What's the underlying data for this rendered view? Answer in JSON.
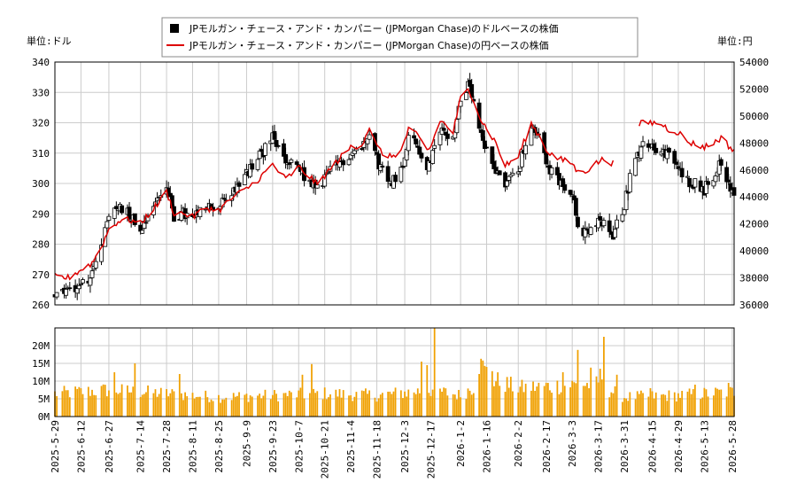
{
  "chart_data": {
    "type": "candlestick",
    "legend": {
      "placement": "top-center",
      "entries": [
        {
          "label": "JPモルガン・チェース・アンド・カンパニー (JPMorgan Chase)のドルベースの株価",
          "color": "#000000",
          "marker": "square"
        },
        {
          "label": "JPモルガン・チェース・アンド・カンパニー (JPMorgan Chase)の円ベースの株価",
          "color": "#dd0000",
          "marker": "line"
        }
      ]
    },
    "left_axis": {
      "unit_label": "単位:ドル",
      "min": 260,
      "max": 340,
      "ticks": [
        "260",
        "270",
        "280",
        "290",
        "300",
        "310",
        "320",
        "330",
        "340"
      ]
    },
    "right_axis": {
      "unit_label": "単位:円",
      "min": 36000,
      "max": 54000,
      "ticks": [
        "36000",
        "38000",
        "40000",
        "42000",
        "44000",
        "46000",
        "48000",
        "50000",
        "52000",
        "54000"
      ]
    },
    "volume_axis": {
      "min": 0,
      "max": 25000000,
      "ticks": [
        "0M",
        "5M",
        "10M",
        "15M",
        "20M"
      ]
    },
    "x_axis": {
      "start": "2025-05-29",
      "end": "2026-05-29",
      "tick_labels": [
        "2025-5-29",
        "2025-6-12",
        "2025-6-27",
        "2025-7-14",
        "2025-7-28",
        "2025-8-11",
        "2025-8-25",
        "2025-9-9",
        "2025-9-23",
        "2025-10-7",
        "2025-10-21",
        "2025-11-4",
        "2025-11-18",
        "2025-12-3",
        "2025-12-17",
        "2026-1-2",
        "2026-1-16",
        "2026-2-2",
        "2026-2-17",
        "2026-3-3",
        "2026-3-17",
        "2026-3-31",
        "2026-4-15",
        "2026-4-29",
        "2026-5-13",
        "2026-5-28"
      ]
    },
    "grid": true,
    "price_anchors": [
      [
        "2025-05-29",
        264
      ],
      [
        "2025-06-05",
        265
      ],
      [
        "2025-06-12",
        267
      ],
      [
        "2025-06-18",
        270
      ],
      [
        "2025-06-23",
        279
      ],
      [
        "2025-06-27",
        288
      ],
      [
        "2025-07-02",
        293
      ],
      [
        "2025-07-08",
        290
      ],
      [
        "2025-07-14",
        285
      ],
      [
        "2025-07-18",
        290
      ],
      [
        "2025-07-24",
        296
      ],
      [
        "2025-07-28",
        299
      ],
      [
        "2025-08-01",
        289
      ],
      [
        "2025-08-06",
        290
      ],
      [
        "2025-08-11",
        288
      ],
      [
        "2025-08-18",
        292
      ],
      [
        "2025-08-25",
        292
      ],
      [
        "2025-09-02",
        298
      ],
      [
        "2025-09-09",
        303
      ],
      [
        "2025-09-16",
        309
      ],
      [
        "2025-09-23",
        315
      ],
      [
        "2025-09-30",
        307
      ],
      [
        "2025-10-07",
        305
      ],
      [
        "2025-10-13",
        300
      ],
      [
        "2025-10-17",
        298
      ],
      [
        "2025-10-21",
        302
      ],
      [
        "2025-10-28",
        306
      ],
      [
        "2025-11-04",
        310
      ],
      [
        "2025-11-10",
        312
      ],
      [
        "2025-11-14",
        318
      ],
      [
        "2025-11-18",
        308
      ],
      [
        "2025-11-24",
        300
      ],
      [
        "2025-12-01",
        304
      ],
      [
        "2025-12-05",
        316
      ],
      [
        "2025-12-10",
        312
      ],
      [
        "2025-12-15",
        305
      ],
      [
        "2025-12-17",
        307
      ],
      [
        "2025-12-22",
        318
      ],
      [
        "2025-12-29",
        315
      ],
      [
        "2026-01-02",
        328
      ],
      [
        "2026-01-06",
        332
      ],
      [
        "2026-01-09",
        326
      ],
      [
        "2026-01-13",
        315
      ],
      [
        "2026-01-16",
        310
      ],
      [
        "2026-01-21",
        305
      ],
      [
        "2026-01-26",
        300
      ],
      [
        "2026-02-02",
        305
      ],
      [
        "2026-02-09",
        318
      ],
      [
        "2026-02-13",
        315
      ],
      [
        "2026-02-17",
        308
      ],
      [
        "2026-02-21",
        302
      ],
      [
        "2026-02-26",
        300
      ],
      [
        "2026-03-03",
        298
      ],
      [
        "2026-03-06",
        285
      ],
      [
        "2026-03-11",
        283
      ],
      [
        "2026-03-17",
        287
      ],
      [
        "2026-03-20",
        286
      ],
      [
        "2026-03-25",
        283
      ],
      [
        "2026-03-31",
        293
      ],
      [
        "2026-04-06",
        310
      ],
      [
        "2026-04-10",
        312
      ],
      [
        "2026-04-15",
        313
      ],
      [
        "2026-04-20",
        310
      ],
      [
        "2026-04-24",
        309
      ],
      [
        "2026-04-29",
        305
      ],
      [
        "2026-05-04",
        301
      ],
      [
        "2026-05-08",
        300
      ],
      [
        "2026-05-13",
        298
      ],
      [
        "2026-05-18",
        303
      ],
      [
        "2026-05-22",
        307
      ],
      [
        "2026-05-28",
        297
      ]
    ],
    "yen_anchors": [
      [
        "2025-05-29",
        38100
      ],
      [
        "2025-06-05",
        38000
      ],
      [
        "2025-06-12",
        38600
      ],
      [
        "2025-06-18",
        39100
      ],
      [
        "2025-06-23",
        40300
      ],
      [
        "2025-06-27",
        41600
      ],
      [
        "2025-07-02",
        42200
      ],
      [
        "2025-07-08",
        42300
      ],
      [
        "2025-07-14",
        42000
      ],
      [
        "2025-07-18",
        42700
      ],
      [
        "2025-07-24",
        43600
      ],
      [
        "2025-07-28",
        44400
      ],
      [
        "2025-08-01",
        42800
      ],
      [
        "2025-08-06",
        42800
      ],
      [
        "2025-08-11",
        42500
      ],
      [
        "2025-08-18",
        43200
      ],
      [
        "2025-08-25",
        43000
      ],
      [
        "2025-09-02",
        44000
      ],
      [
        "2025-09-09",
        44600
      ],
      [
        "2025-09-16",
        45400
      ],
      [
        "2025-09-23",
        46400
      ],
      [
        "2025-09-30",
        45300
      ],
      [
        "2025-10-07",
        46200
      ],
      [
        "2025-10-13",
        45500
      ],
      [
        "2025-10-17",
        44900
      ],
      [
        "2025-10-21",
        45600
      ],
      [
        "2025-10-28",
        46700
      ],
      [
        "2025-11-04",
        47700
      ],
      [
        "2025-11-10",
        47900
      ],
      [
        "2025-11-14",
        49200
      ],
      [
        "2025-11-18",
        47700
      ],
      [
        "2025-11-24",
        46900
      ],
      [
        "2025-12-01",
        47400
      ],
      [
        "2025-12-05",
        49000
      ],
      [
        "2025-12-10",
        48500
      ],
      [
        "2025-12-15",
        47500
      ],
      [
        "2025-12-17",
        47700
      ],
      [
        "2025-12-22",
        49700
      ],
      [
        "2025-12-29",
        48800
      ],
      [
        "2026-01-02",
        51300
      ],
      [
        "2026-01-06",
        51900
      ],
      [
        "2026-01-09",
        51300
      ],
      [
        "2026-01-13",
        49700
      ],
      [
        "2026-01-16",
        49100
      ],
      [
        "2026-01-21",
        48000
      ],
      [
        "2026-01-26",
        46300
      ],
      [
        "2026-02-02",
        47000
      ],
      [
        "2026-02-09",
        49400
      ],
      [
        "2026-02-13",
        48600
      ],
      [
        "2026-02-17",
        47500
      ],
      [
        "2026-02-21",
        47000
      ],
      [
        "2026-02-26",
        46700
      ],
      [
        "2026-03-03",
        46500
      ],
      [
        "2026-03-06",
        45800
      ],
      [
        "2026-03-11",
        46000
      ],
      [
        "2026-03-17",
        46600
      ],
      [
        "2026-03-20",
        46800
      ],
      [
        "2026-03-25",
        46500
      ],
      [
        "2026-03-31",
        47000
      ],
      [
        "2026-04-06",
        49200
      ],
      [
        "2026-04-10",
        49500
      ],
      [
        "2026-04-15",
        49500
      ],
      [
        "2026-04-20",
        49400
      ],
      [
        "2026-04-24",
        49000
      ],
      [
        "2026-04-29",
        48800
      ],
      [
        "2026-05-04",
        48100
      ],
      [
        "2026-05-08",
        47900
      ],
      [
        "2026-05-13",
        47700
      ],
      [
        "2026-05-18",
        48000
      ],
      [
        "2026-05-22",
        48400
      ],
      [
        "2026-05-28",
        47500
      ]
    ],
    "yen_gaps": [
      [
        "2026-03-26",
        "2026-04-07"
      ]
    ],
    "volume_anchors": [
      [
        "2025-05-29",
        6500000
      ],
      [
        "2025-06-27",
        7500000
      ],
      [
        "2025-07-28",
        6500000
      ],
      [
        "2025-08-25",
        5500000
      ],
      [
        "2025-09-23",
        6000000
      ],
      [
        "2025-10-21",
        6500000
      ],
      [
        "2025-11-18",
        6000000
      ],
      [
        "2025-12-17",
        7500000
      ],
      [
        "2026-01-02",
        6000000
      ],
      [
        "2026-01-16",
        11000000
      ],
      [
        "2026-02-02",
        8000000
      ],
      [
        "2026-03-03",
        9000000
      ],
      [
        "2026-03-17",
        9000000
      ],
      [
        "2026-03-31",
        5500000
      ],
      [
        "2026-04-29",
        6000000
      ],
      [
        "2026-05-28",
        7000000
      ]
    ],
    "volume_spikes": [
      [
        "2025-06-30",
        12500000
      ],
      [
        "2025-07-11",
        15000000
      ],
      [
        "2025-08-04",
        12000000
      ],
      [
        "2025-10-09",
        11800000
      ],
      [
        "2025-10-14",
        14800000
      ],
      [
        "2026-01-13",
        16300000
      ],
      [
        "2026-01-14",
        15800000
      ],
      [
        "2026-01-15",
        14300000
      ],
      [
        "2026-01-16",
        14000000
      ],
      [
        "2026-01-19",
        12800000
      ],
      [
        "2026-01-12",
        12000000
      ],
      [
        "2025-12-12",
        15500000
      ],
      [
        "2025-12-19",
        25000000
      ],
      [
        "2025-12-15",
        14500000
      ],
      [
        "2026-03-06",
        18800000
      ],
      [
        "2026-03-13",
        13800000
      ],
      [
        "2026-03-18",
        13500000
      ],
      [
        "2026-03-20",
        22500000
      ],
      [
        "2026-02-26",
        12500000
      ],
      [
        "2026-03-27",
        11800000
      ],
      [
        "2026-04-14",
        8000000
      ],
      [
        "2026-05-08",
        9000000
      ],
      [
        "2026-05-26",
        9500000
      ]
    ]
  }
}
